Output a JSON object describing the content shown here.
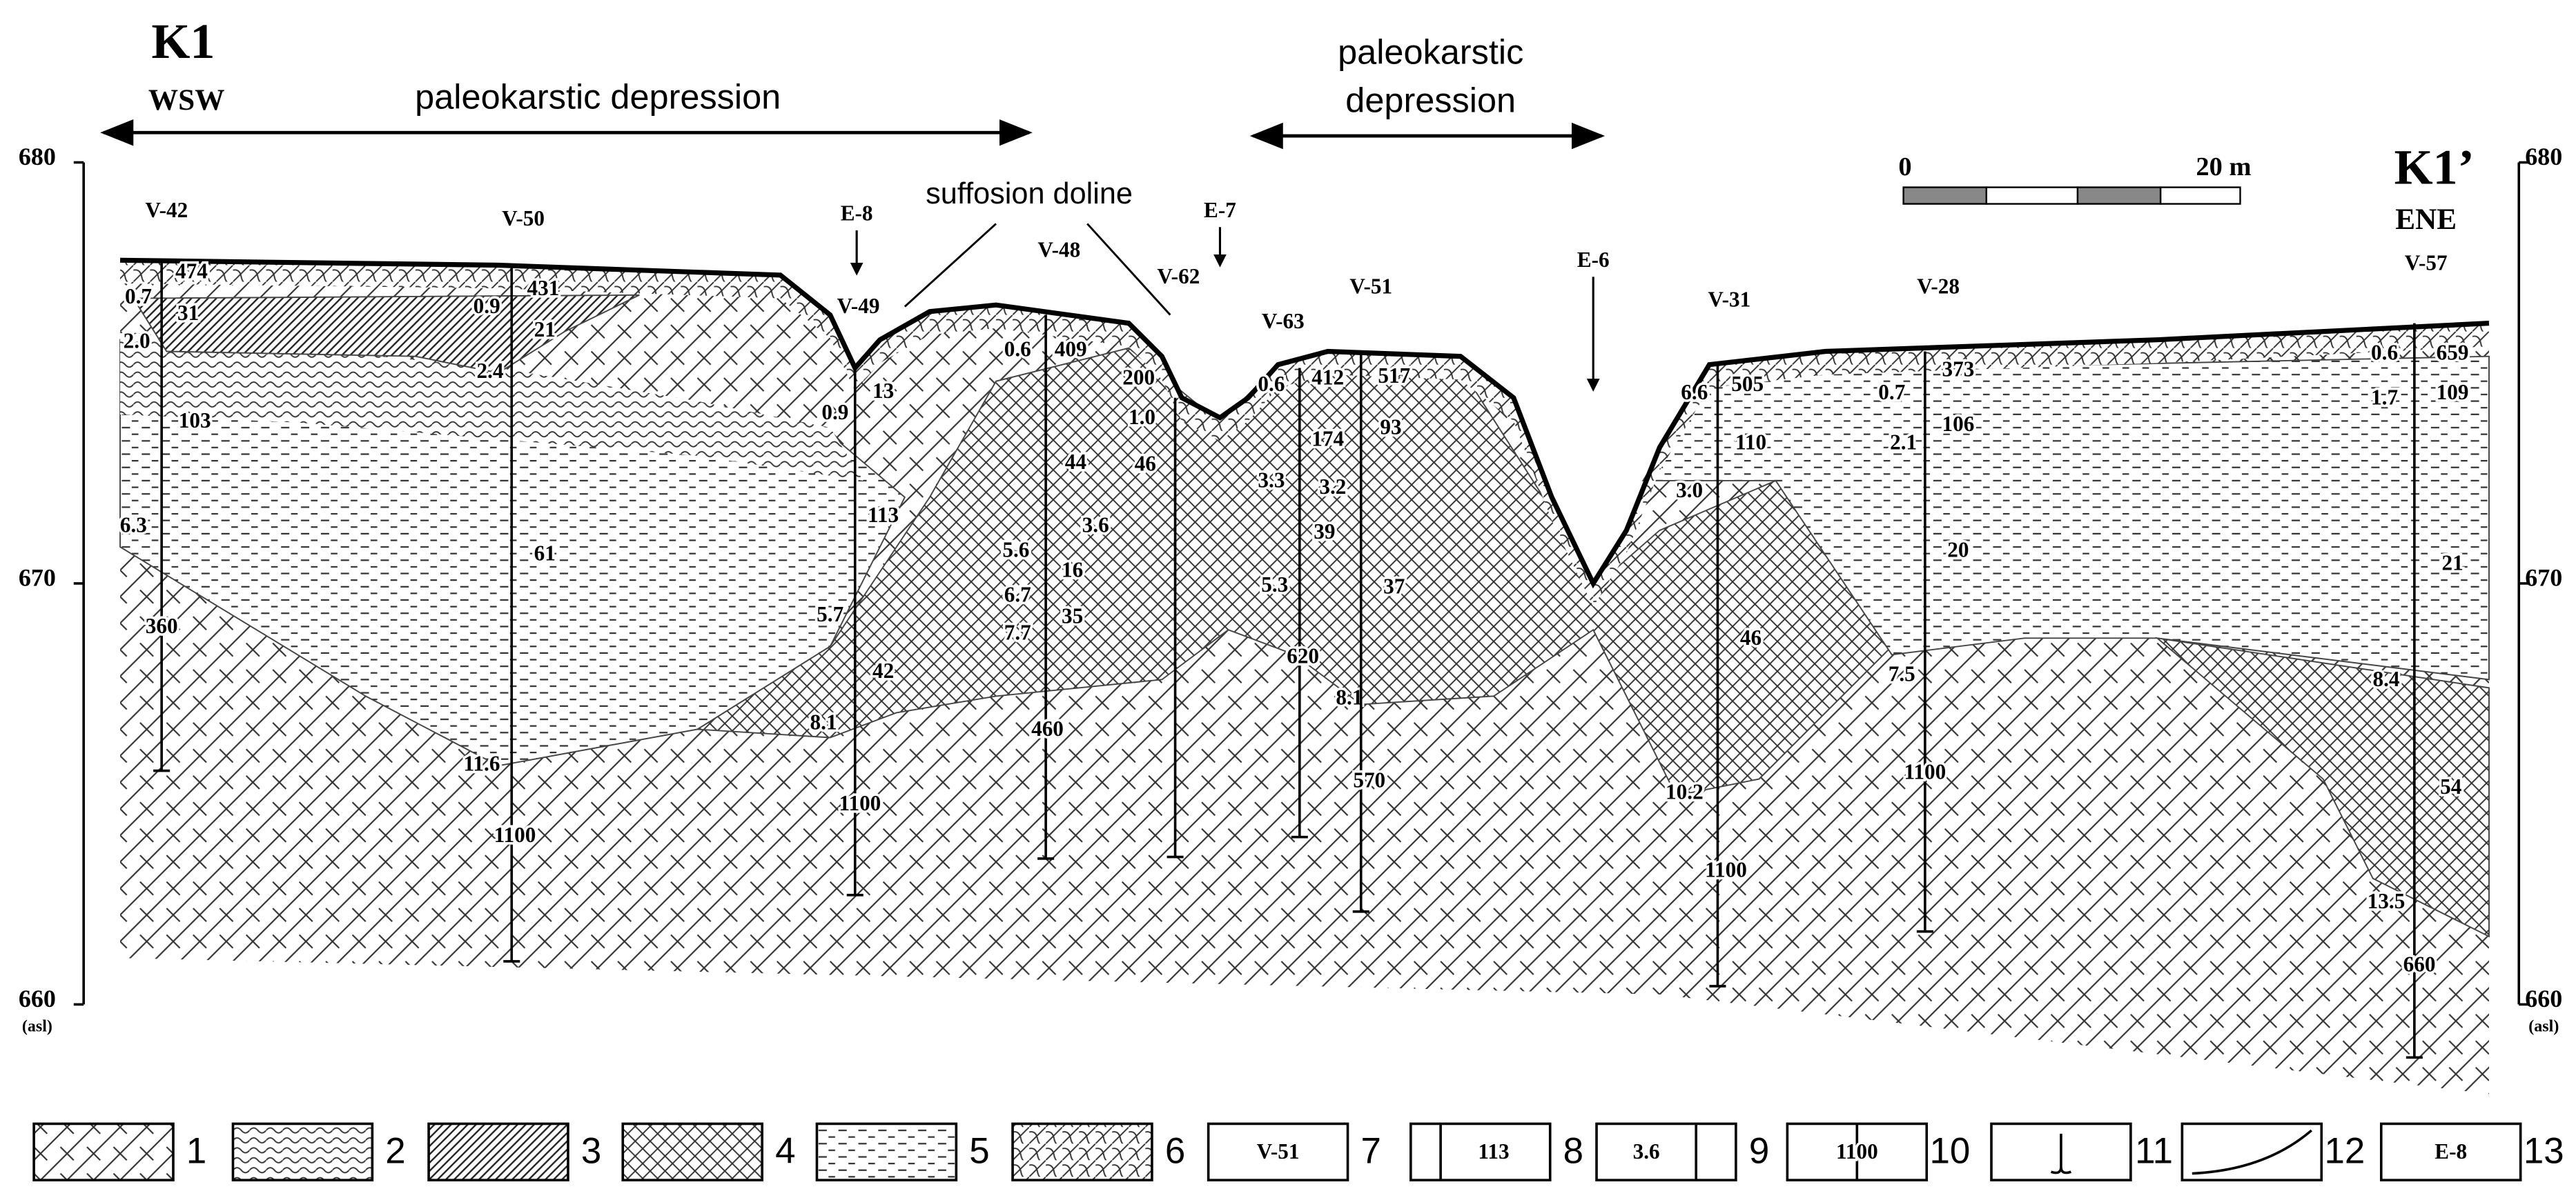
{
  "header": {
    "left_profile": "K1",
    "left_direction": "WSW",
    "right_profile": "K1’",
    "right_direction": "ENE"
  },
  "annotations": {
    "depression_west": "paleokarstic depression",
    "depression_east": [
      "paleokarstic",
      "depression"
    ],
    "doline": "suffosion doline"
  },
  "scale_bar": {
    "start": "0",
    "end": "20 m"
  },
  "elevation_axis": {
    "ticks": [
      680,
      670,
      660
    ],
    "unit": "(asl)"
  },
  "wells": [
    {
      "name": "V-42",
      "labels": [
        "474",
        "0.7",
        "31",
        "2.0",
        "103",
        "6.3",
        "360"
      ]
    },
    {
      "name": "V-50",
      "labels": [
        "431",
        "0.9",
        "21",
        "2.4",
        "61",
        "11.6",
        "1100"
      ]
    },
    {
      "name": "V-49",
      "labels": [
        "13",
        "0.9",
        "113",
        "5.7",
        "42",
        "8.1",
        "1100"
      ]
    },
    {
      "name": "V-48",
      "labels": [
        "409",
        "0.6",
        "44",
        "3.6",
        "5.6",
        "16",
        "6.7",
        "35",
        "7.7",
        "460"
      ]
    },
    {
      "name": "V-62",
      "labels": [
        "200",
        "1.0",
        "46"
      ]
    },
    {
      "name": "V-63",
      "labels": [
        "0.6",
        "412",
        "174",
        "3.3",
        "3.2",
        "39",
        "5.3",
        "620",
        "8.1"
      ]
    },
    {
      "name": "V-51",
      "labels": [
        "517",
        "93",
        "37",
        "570"
      ]
    },
    {
      "name": "V-31",
      "labels": [
        "6.6",
        "505",
        "110",
        "3.0",
        "46",
        "10.2",
        "1100"
      ]
    },
    {
      "name": "V-28",
      "labels": [
        "373",
        "0.7",
        "106",
        "2.1",
        "20",
        "7.5",
        "1100"
      ]
    },
    {
      "name": "V-57",
      "labels": [
        "0.6",
        "659",
        "109",
        "1.7",
        "21",
        "8.4",
        "54",
        "13.5",
        "660"
      ]
    }
  ],
  "electrical_soundings": [
    "E-8",
    "E-7",
    "E-6"
  ],
  "legend": {
    "items": [
      {
        "number": "1"
      },
      {
        "number": "2"
      },
      {
        "number": "3"
      },
      {
        "number": "4"
      },
      {
        "number": "5"
      },
      {
        "number": "6"
      },
      {
        "number": "7",
        "sample": "V-51"
      },
      {
        "number": "8",
        "sample": "113"
      },
      {
        "number": "9",
        "sample": "3.6"
      },
      {
        "number": "10",
        "sample": "1100"
      },
      {
        "number": "11"
      },
      {
        "number": "12"
      },
      {
        "number": "13",
        "sample": "E-8"
      }
    ]
  }
}
